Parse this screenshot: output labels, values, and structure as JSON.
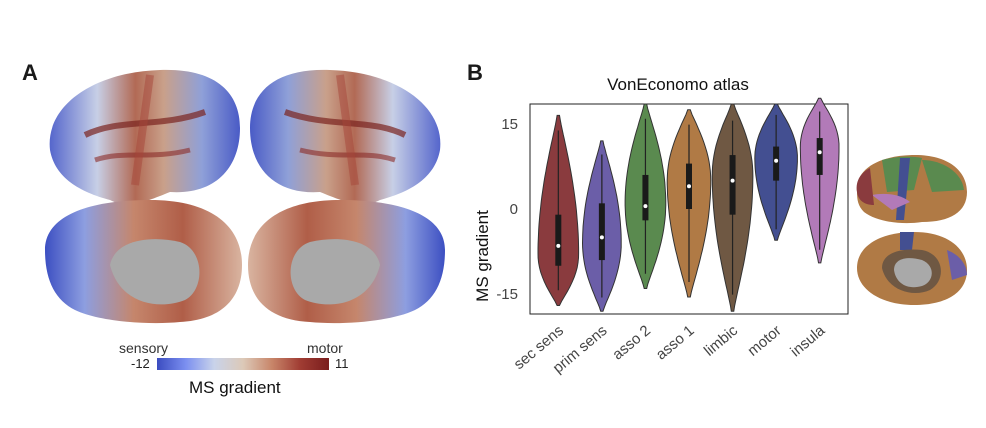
{
  "panels": {
    "a_label": "A",
    "b_label": "B"
  },
  "colorbar": {
    "low_word": "sensory",
    "high_word": "motor",
    "min": "-12",
    "max": "11",
    "title": "MS gradient"
  },
  "colors": {
    "colormap_low": "#3b4cc0",
    "colormap_mid": "#d9d3cf",
    "colormap_high": "#7a1d1d",
    "medial_wall": "#a9a9a9"
  },
  "chart_data": {
    "type": "violin",
    "title": "VonEconomo atlas",
    "xlabel": "",
    "ylabel": "MS gradient",
    "ylim": [
      -18.5,
      18.5
    ],
    "yticks": [
      15,
      0,
      -15
    ],
    "categories": [
      "sec sens",
      "prim sens",
      "asso 2",
      "asso 1",
      "limbic",
      "motor",
      "insula"
    ],
    "colors": [
      "#8a3b3e",
      "#6b5ea8",
      "#5a8a4f",
      "#b07a45",
      "#6f5843",
      "#434f91",
      "#b27ab8"
    ],
    "violins": [
      {
        "min": -17,
        "max": 16.5,
        "q1": -10,
        "median": -6.5,
        "q3": -1,
        "mode": -8,
        "width": 0.42
      },
      {
        "min": -18,
        "max": 12,
        "q1": -9,
        "median": -5,
        "q3": 1,
        "mode": -6,
        "width": 0.4
      },
      {
        "min": -14,
        "max": 18.5,
        "q1": -2,
        "median": 0.5,
        "q3": 6,
        "mode": 1,
        "width": 0.42
      },
      {
        "min": -15.5,
        "max": 17.5,
        "q1": 0,
        "median": 4,
        "q3": 8,
        "mode": 5,
        "width": 0.45
      },
      {
        "min": -18,
        "max": 18.5,
        "q1": -1,
        "median": 5,
        "q3": 9.5,
        "mode": 6,
        "width": 0.42
      },
      {
        "min": -5.5,
        "max": 18.5,
        "q1": 5,
        "median": 8.5,
        "q3": 11,
        "mode": 9,
        "width": 0.44
      },
      {
        "min": -9.5,
        "max": 19.5,
        "q1": 6,
        "median": 10,
        "q3": 12.5,
        "mode": 11,
        "width": 0.4
      }
    ],
    "grid": false
  }
}
